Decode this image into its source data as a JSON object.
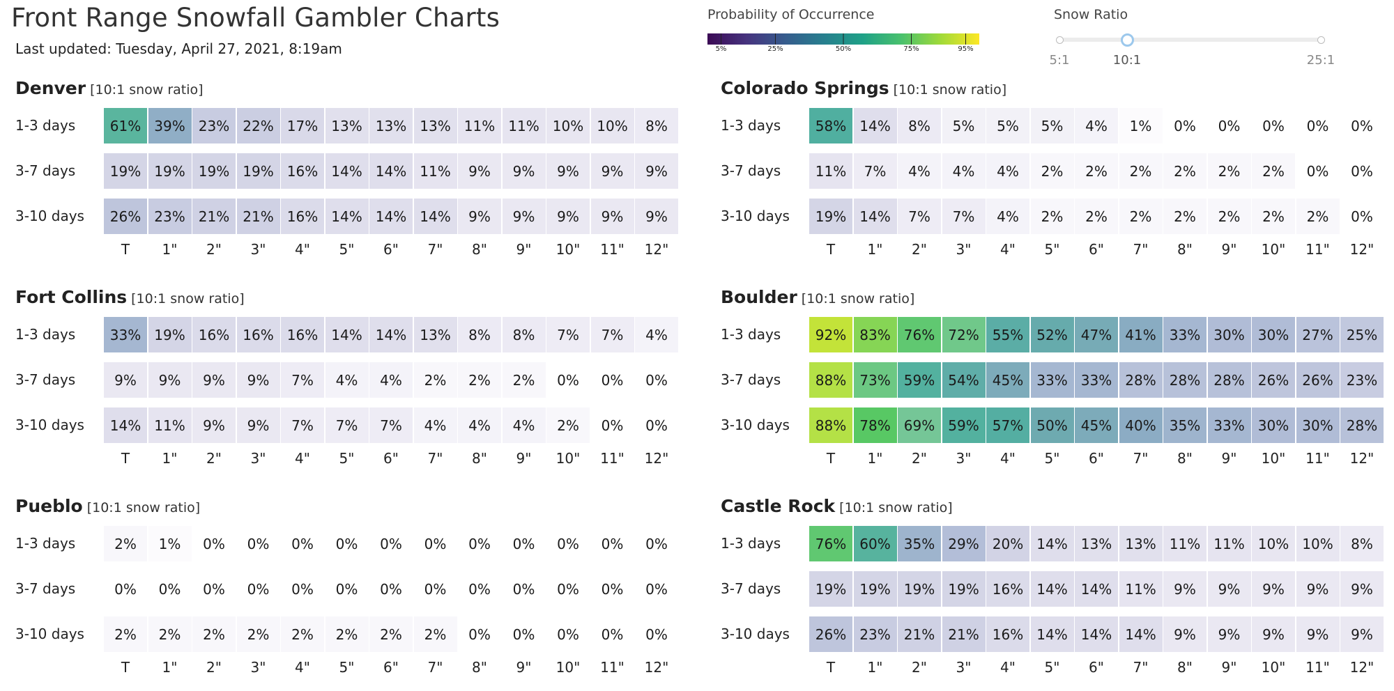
{
  "header": {
    "title": "Front Range Snowfall Gambler Charts",
    "updated": "Last updated: Tuesday, April 27, 2021, 8:19am"
  },
  "legend": {
    "title": "Probability of Occurrence",
    "ticks": [
      "5%",
      "25%",
      "50%",
      "75%",
      "95%"
    ],
    "tick_values": [
      5,
      25,
      50,
      75,
      95
    ]
  },
  "snow_ratio": {
    "title": "Snow Ratio",
    "options": [
      "5:1",
      "10:1",
      "25:1"
    ],
    "selected": "10:1",
    "selected_index": 1
  },
  "chart_data": [
    {
      "type": "heatmap",
      "title": "Denver",
      "subtitle": "[10:1 snow ratio]",
      "rows": [
        "1-3 days",
        "3-7 days",
        "3-10 days"
      ],
      "categories": [
        "T",
        "1\"",
        "2\"",
        "3\"",
        "4\"",
        "5\"",
        "6\"",
        "7\"",
        "8\"",
        "9\"",
        "10\"",
        "11\"",
        "12\""
      ],
      "values": [
        [
          61,
          39,
          23,
          22,
          17,
          13,
          13,
          13,
          11,
          11,
          10,
          10,
          8
        ],
        [
          19,
          19,
          19,
          19,
          16,
          14,
          14,
          11,
          9,
          9,
          9,
          9,
          9
        ],
        [
          26,
          23,
          21,
          21,
          16,
          14,
          14,
          14,
          9,
          9,
          9,
          9,
          9
        ]
      ]
    },
    {
      "type": "heatmap",
      "title": "Colorado Springs",
      "subtitle": "[10:1 snow ratio]",
      "rows": [
        "1-3 days",
        "3-7 days",
        "3-10 days"
      ],
      "categories": [
        "T",
        "1\"",
        "2\"",
        "3\"",
        "4\"",
        "5\"",
        "6\"",
        "7\"",
        "8\"",
        "9\"",
        "10\"",
        "11\"",
        "12\""
      ],
      "values": [
        [
          58,
          14,
          8,
          5,
          5,
          5,
          4,
          1,
          0,
          0,
          0,
          0,
          0
        ],
        [
          11,
          7,
          4,
          4,
          4,
          2,
          2,
          2,
          2,
          2,
          2,
          0,
          0
        ],
        [
          19,
          14,
          7,
          7,
          4,
          2,
          2,
          2,
          2,
          2,
          2,
          2,
          0
        ]
      ]
    },
    {
      "type": "heatmap",
      "title": "Fort Collins",
      "subtitle": "[10:1 snow ratio]",
      "rows": [
        "1-3 days",
        "3-7 days",
        "3-10 days"
      ],
      "categories": [
        "T",
        "1\"",
        "2\"",
        "3\"",
        "4\"",
        "5\"",
        "6\"",
        "7\"",
        "8\"",
        "9\"",
        "10\"",
        "11\"",
        "12\""
      ],
      "values": [
        [
          33,
          19,
          16,
          16,
          16,
          14,
          14,
          13,
          8,
          8,
          7,
          7,
          4
        ],
        [
          9,
          9,
          9,
          9,
          7,
          4,
          4,
          2,
          2,
          2,
          0,
          0,
          0
        ],
        [
          14,
          11,
          9,
          9,
          7,
          7,
          7,
          4,
          4,
          4,
          2,
          0,
          0
        ]
      ]
    },
    {
      "type": "heatmap",
      "title": "Boulder",
      "subtitle": "[10:1 snow ratio]",
      "rows": [
        "1-3 days",
        "3-7 days",
        "3-10 days"
      ],
      "categories": [
        "T",
        "1\"",
        "2\"",
        "3\"",
        "4\"",
        "5\"",
        "6\"",
        "7\"",
        "8\"",
        "9\"",
        "10\"",
        "11\"",
        "12\""
      ],
      "values": [
        [
          92,
          83,
          76,
          72,
          55,
          52,
          47,
          41,
          33,
          30,
          30,
          27,
          25
        ],
        [
          88,
          73,
          59,
          54,
          45,
          33,
          33,
          28,
          28,
          28,
          26,
          26,
          23
        ],
        [
          88,
          78,
          69,
          59,
          57,
          50,
          45,
          40,
          35,
          33,
          30,
          30,
          28
        ]
      ]
    },
    {
      "type": "heatmap",
      "title": "Pueblo",
      "subtitle": "[10:1 snow ratio]",
      "rows": [
        "1-3 days",
        "3-7 days",
        "3-10 days"
      ],
      "categories": [
        "T",
        "1\"",
        "2\"",
        "3\"",
        "4\"",
        "5\"",
        "6\"",
        "7\"",
        "8\"",
        "9\"",
        "10\"",
        "11\"",
        "12\""
      ],
      "values": [
        [
          2,
          1,
          0,
          0,
          0,
          0,
          0,
          0,
          0,
          0,
          0,
          0,
          0
        ],
        [
          0,
          0,
          0,
          0,
          0,
          0,
          0,
          0,
          0,
          0,
          0,
          0,
          0
        ],
        [
          2,
          2,
          2,
          2,
          2,
          2,
          2,
          2,
          0,
          0,
          0,
          0,
          0
        ]
      ]
    },
    {
      "type": "heatmap",
      "title": "Castle Rock",
      "subtitle": "[10:1 snow ratio]",
      "rows": [
        "1-3 days",
        "3-7 days",
        "3-10 days"
      ],
      "categories": [
        "T",
        "1\"",
        "2\"",
        "3\"",
        "4\"",
        "5\"",
        "6\"",
        "7\"",
        "8\"",
        "9\"",
        "10\"",
        "11\"",
        "12\""
      ],
      "values": [
        [
          76,
          60,
          35,
          29,
          20,
          14,
          13,
          13,
          11,
          11,
          10,
          10,
          8
        ],
        [
          19,
          19,
          19,
          19,
          16,
          14,
          14,
          11,
          9,
          9,
          9,
          9,
          9
        ],
        [
          26,
          23,
          21,
          21,
          16,
          14,
          14,
          14,
          9,
          9,
          9,
          9,
          9
        ]
      ]
    }
  ]
}
